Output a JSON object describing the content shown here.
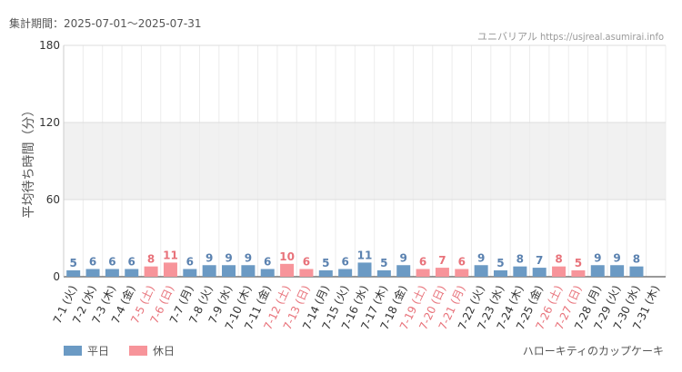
{
  "header": {
    "period_label": "集計期間：2025-07-01～2025-07-31",
    "watermark": "ユニバリアル  https://usjreal.asumirai.info"
  },
  "legend": {
    "weekday_label": "平日",
    "holiday_label": "休日"
  },
  "footer": {
    "attraction_name": "ハローキティのカップケーキ"
  },
  "colors": {
    "weekday": "#6b9ac4",
    "holiday": "#f7949a",
    "weekday_label": "#5b82b0",
    "holiday_label": "#e8727a",
    "band": "#f1f1f1"
  },
  "chart_data": {
    "type": "bar",
    "ylabel": "平均待ち時間（分）",
    "ylim": [
      0,
      180
    ],
    "yticks": [
      0,
      60,
      120,
      180
    ],
    "shaded_band": [
      60,
      120
    ],
    "categories": [
      "7-1 (火)",
      "7-2 (水)",
      "7-3 (木)",
      "7-4 (金)",
      "7-5 (土)",
      "7-6 (日)",
      "7-7 (月)",
      "7-8 (火)",
      "7-9 (水)",
      "7-10 (木)",
      "7-11 (金)",
      "7-12 (土)",
      "7-13 (日)",
      "7-14 (月)",
      "7-15 (火)",
      "7-16 (水)",
      "7-17 (木)",
      "7-18 (金)",
      "7-19 (土)",
      "7-20 (日)",
      "7-21 (月)",
      "7-22 (火)",
      "7-23 (水)",
      "7-24 (木)",
      "7-25 (金)",
      "7-26 (土)",
      "7-27 (日)",
      "7-28 (月)",
      "7-29 (火)",
      "7-30 (水)",
      "7-31 (木)"
    ],
    "values": [
      5,
      6,
      6,
      6,
      8,
      11,
      6,
      9,
      9,
      9,
      6,
      10,
      6,
      5,
      6,
      11,
      5,
      9,
      6,
      7,
      6,
      9,
      5,
      8,
      7,
      8,
      5,
      9,
      9,
      8,
      null
    ],
    "day_type": [
      "weekday",
      "weekday",
      "weekday",
      "weekday",
      "holiday",
      "holiday",
      "weekday",
      "weekday",
      "weekday",
      "weekday",
      "weekday",
      "holiday",
      "holiday",
      "weekday",
      "weekday",
      "weekday",
      "weekday",
      "weekday",
      "holiday",
      "holiday",
      "holiday",
      "weekday",
      "weekday",
      "weekday",
      "weekday",
      "holiday",
      "holiday",
      "weekday",
      "weekday",
      "weekday",
      "weekday"
    ],
    "series": [
      {
        "name": "平日"
      },
      {
        "name": "休日"
      }
    ],
    "grid": true
  }
}
